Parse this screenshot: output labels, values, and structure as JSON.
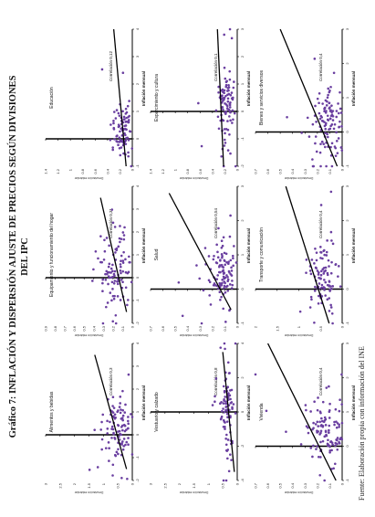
{
  "title_line1": "Gráfico 7: INFLACIÓN Y DISPERSIÓN AJUSTE DE PRECIOS SEGÚN DIVISIONES",
  "title_line2": "DEL IPC",
  "source": "Fuente: Elaboración propia con información del INE",
  "colors": {
    "points": "#6a3fa0",
    "line": "#000000",
    "axis": "#000000"
  },
  "chart_data": [
    {
      "type": "scatter",
      "title": "Alimentos y bebidas",
      "xlabel": "Inflación mensual",
      "ylabel": "Desviación estándar",
      "annotation": "Correlación 0,3",
      "xlim": [
        -2,
        4
      ],
      "ylim": [
        0,
        3.0
      ],
      "xticks": [
        -2,
        -1,
        0,
        1,
        2,
        3,
        4
      ],
      "yticks": [
        0,
        0.5,
        1.0,
        1.5,
        2.0,
        2.5,
        3.0
      ],
      "line": [
        [
          -1.5,
          0.2
        ],
        [
          3.5,
          1.3
        ]
      ],
      "cluster": {
        "cx": 0.4,
        "cy": 0.5,
        "sx": 0.7,
        "sy": 0.25
      },
      "n": 100
    },
    {
      "type": "scatter",
      "title": "Vestuario y calzado",
      "xlabel": "Inflación mensual",
      "ylabel": "Desviación estándar",
      "annotation": "Correlación 0,8",
      "xlim": [
        -4,
        4
      ],
      "ylim": [
        0,
        3.0
      ],
      "xticks": [
        -4,
        -2,
        0,
        2,
        4
      ],
      "yticks": [
        0,
        0.5,
        1.0,
        1.5,
        2.0,
        2.5,
        3.0
      ],
      "line": [
        [
          -3.5,
          0.1
        ],
        [
          3.5,
          0.5
        ]
      ],
      "cluster": {
        "cx": 0.0,
        "cy": 0.35,
        "sx": 1.3,
        "sy": 0.12
      },
      "n": 90
    },
    {
      "type": "scatter",
      "title": "Vivienda",
      "xlabel": "Inflación mensual",
      "ylabel": "Desviación estándar",
      "annotation": "Correlación 0,4",
      "xlim": [
        -1,
        3
      ],
      "ylim": [
        0,
        0.7
      ],
      "xticks": [
        -1,
        0,
        1,
        2,
        3
      ],
      "yticks": [
        0,
        0.1,
        0.2,
        0.3,
        0.4,
        0.5,
        0.6,
        0.7
      ],
      "line": [
        [
          -1,
          0.05
        ],
        [
          3,
          0.6
        ]
      ],
      "cluster": {
        "cx": 0.4,
        "cy": 0.14,
        "sx": 0.5,
        "sy": 0.08
      },
      "n": 110
    },
    {
      "type": "scatter",
      "title": "Equipamiento y funcionamiento del hogar",
      "xlabel": "Inflación mensual",
      "ylabel": "Desviación estándar",
      "annotation": "Correlación 0,31",
      "xlim": [
        -2,
        4
      ],
      "ylim": [
        0,
        0.9
      ],
      "xticks": [
        -2,
        -1,
        0,
        1,
        2,
        3,
        4
      ],
      "yticks": [
        0,
        0.1,
        0.2,
        0.3,
        0.4,
        0.5,
        0.6,
        0.7,
        0.8,
        0.9
      ],
      "line": [
        [
          -1.5,
          0.06
        ],
        [
          3.5,
          0.33
        ]
      ],
      "cluster": {
        "cx": 0.3,
        "cy": 0.18,
        "sx": 0.9,
        "sy": 0.08
      },
      "n": 100
    },
    {
      "type": "scatter",
      "title": "Salud",
      "xlabel": "Inflación mensual",
      "ylabel": "Desviación estándar",
      "annotation": "Correlación 0,54",
      "xlim": [
        -1,
        3
      ],
      "ylim": [
        0,
        0.7
      ],
      "xticks": [
        -1,
        0,
        1,
        2,
        3
      ],
      "yticks": [
        0,
        0.1,
        0.2,
        0.3,
        0.4,
        0.5,
        0.6,
        0.7
      ],
      "line": [
        [
          -0.6,
          0.05
        ],
        [
          2.8,
          0.55
        ]
      ],
      "cluster": {
        "cx": 0.4,
        "cy": 0.12,
        "sx": 0.5,
        "sy": 0.06
      },
      "n": 110
    },
    {
      "type": "scatter",
      "title": "Transporte y comunicación",
      "xlabel": "Inflación mensual",
      "ylabel": "Desviación estándar",
      "annotation": "Correlación 0,4",
      "xlim": [
        -1,
        3
      ],
      "ylim": [
        0,
        2.0
      ],
      "xticks": [
        -1,
        0,
        1,
        2,
        3
      ],
      "yticks": [
        0,
        0.5,
        1.0,
        1.5,
        2.0
      ],
      "line": [
        [
          -1,
          0.3
        ],
        [
          3,
          1.3
        ]
      ],
      "cluster": {
        "cx": 0.4,
        "cy": 0.45,
        "sx": 0.5,
        "sy": 0.15
      },
      "n": 100
    },
    {
      "type": "scatter",
      "title": "Educación",
      "xlabel": "Inflación mensual",
      "ylabel": "Desviación estándar",
      "annotation": "Correlación 0,12",
      "xlim": [
        -1,
        4
      ],
      "ylim": [
        0,
        1.4
      ],
      "xticks": [
        -1,
        0,
        1,
        2,
        3,
        4
      ],
      "yticks": [
        0,
        0.2,
        0.4,
        0.6,
        0.8,
        1.0,
        1.2,
        1.4
      ],
      "line": [
        [
          -1,
          0.1
        ],
        [
          4,
          0.3
        ]
      ],
      "cluster": {
        "cx": 0.3,
        "cy": 0.16,
        "sx": 0.5,
        "sy": 0.07
      },
      "n": 90
    },
    {
      "type": "scatter",
      "title": "Esparcimiento y cultura",
      "xlabel": "Inflación mensual",
      "ylabel": "Desviación estándar",
      "annotation": "Correlación 0,1",
      "xlim": [
        -2,
        3
      ],
      "ylim": [
        0,
        1.4
      ],
      "xticks": [
        -2,
        -1,
        0,
        1,
        2,
        3
      ],
      "yticks": [
        0,
        0.2,
        0.4,
        0.6,
        0.8,
        1.0,
        1.2,
        1.4
      ],
      "line": [
        [
          -2,
          0.22
        ],
        [
          3,
          0.32
        ]
      ],
      "cluster": {
        "cx": 0.2,
        "cy": 0.18,
        "sx": 0.7,
        "sy": 0.07
      },
      "n": 100
    },
    {
      "type": "scatter",
      "title": "Bienes y servicios diversos",
      "xlabel": "Inflación mensual",
      "ylabel": "Desviación estándar",
      "annotation": "Correlación 0,4",
      "xlim": [
        -1,
        3
      ],
      "ylim": [
        0,
        0.7
      ],
      "xticks": [
        -1,
        0,
        1,
        2,
        3
      ],
      "yticks": [
        0,
        0.1,
        0.2,
        0.3,
        0.4,
        0.5,
        0.6,
        0.7
      ],
      "line": [
        [
          -1,
          0.04
        ],
        [
          3,
          0.5
        ]
      ],
      "cluster": {
        "cx": 0.4,
        "cy": 0.12,
        "sx": 0.5,
        "sy": 0.07
      },
      "n": 110
    }
  ]
}
